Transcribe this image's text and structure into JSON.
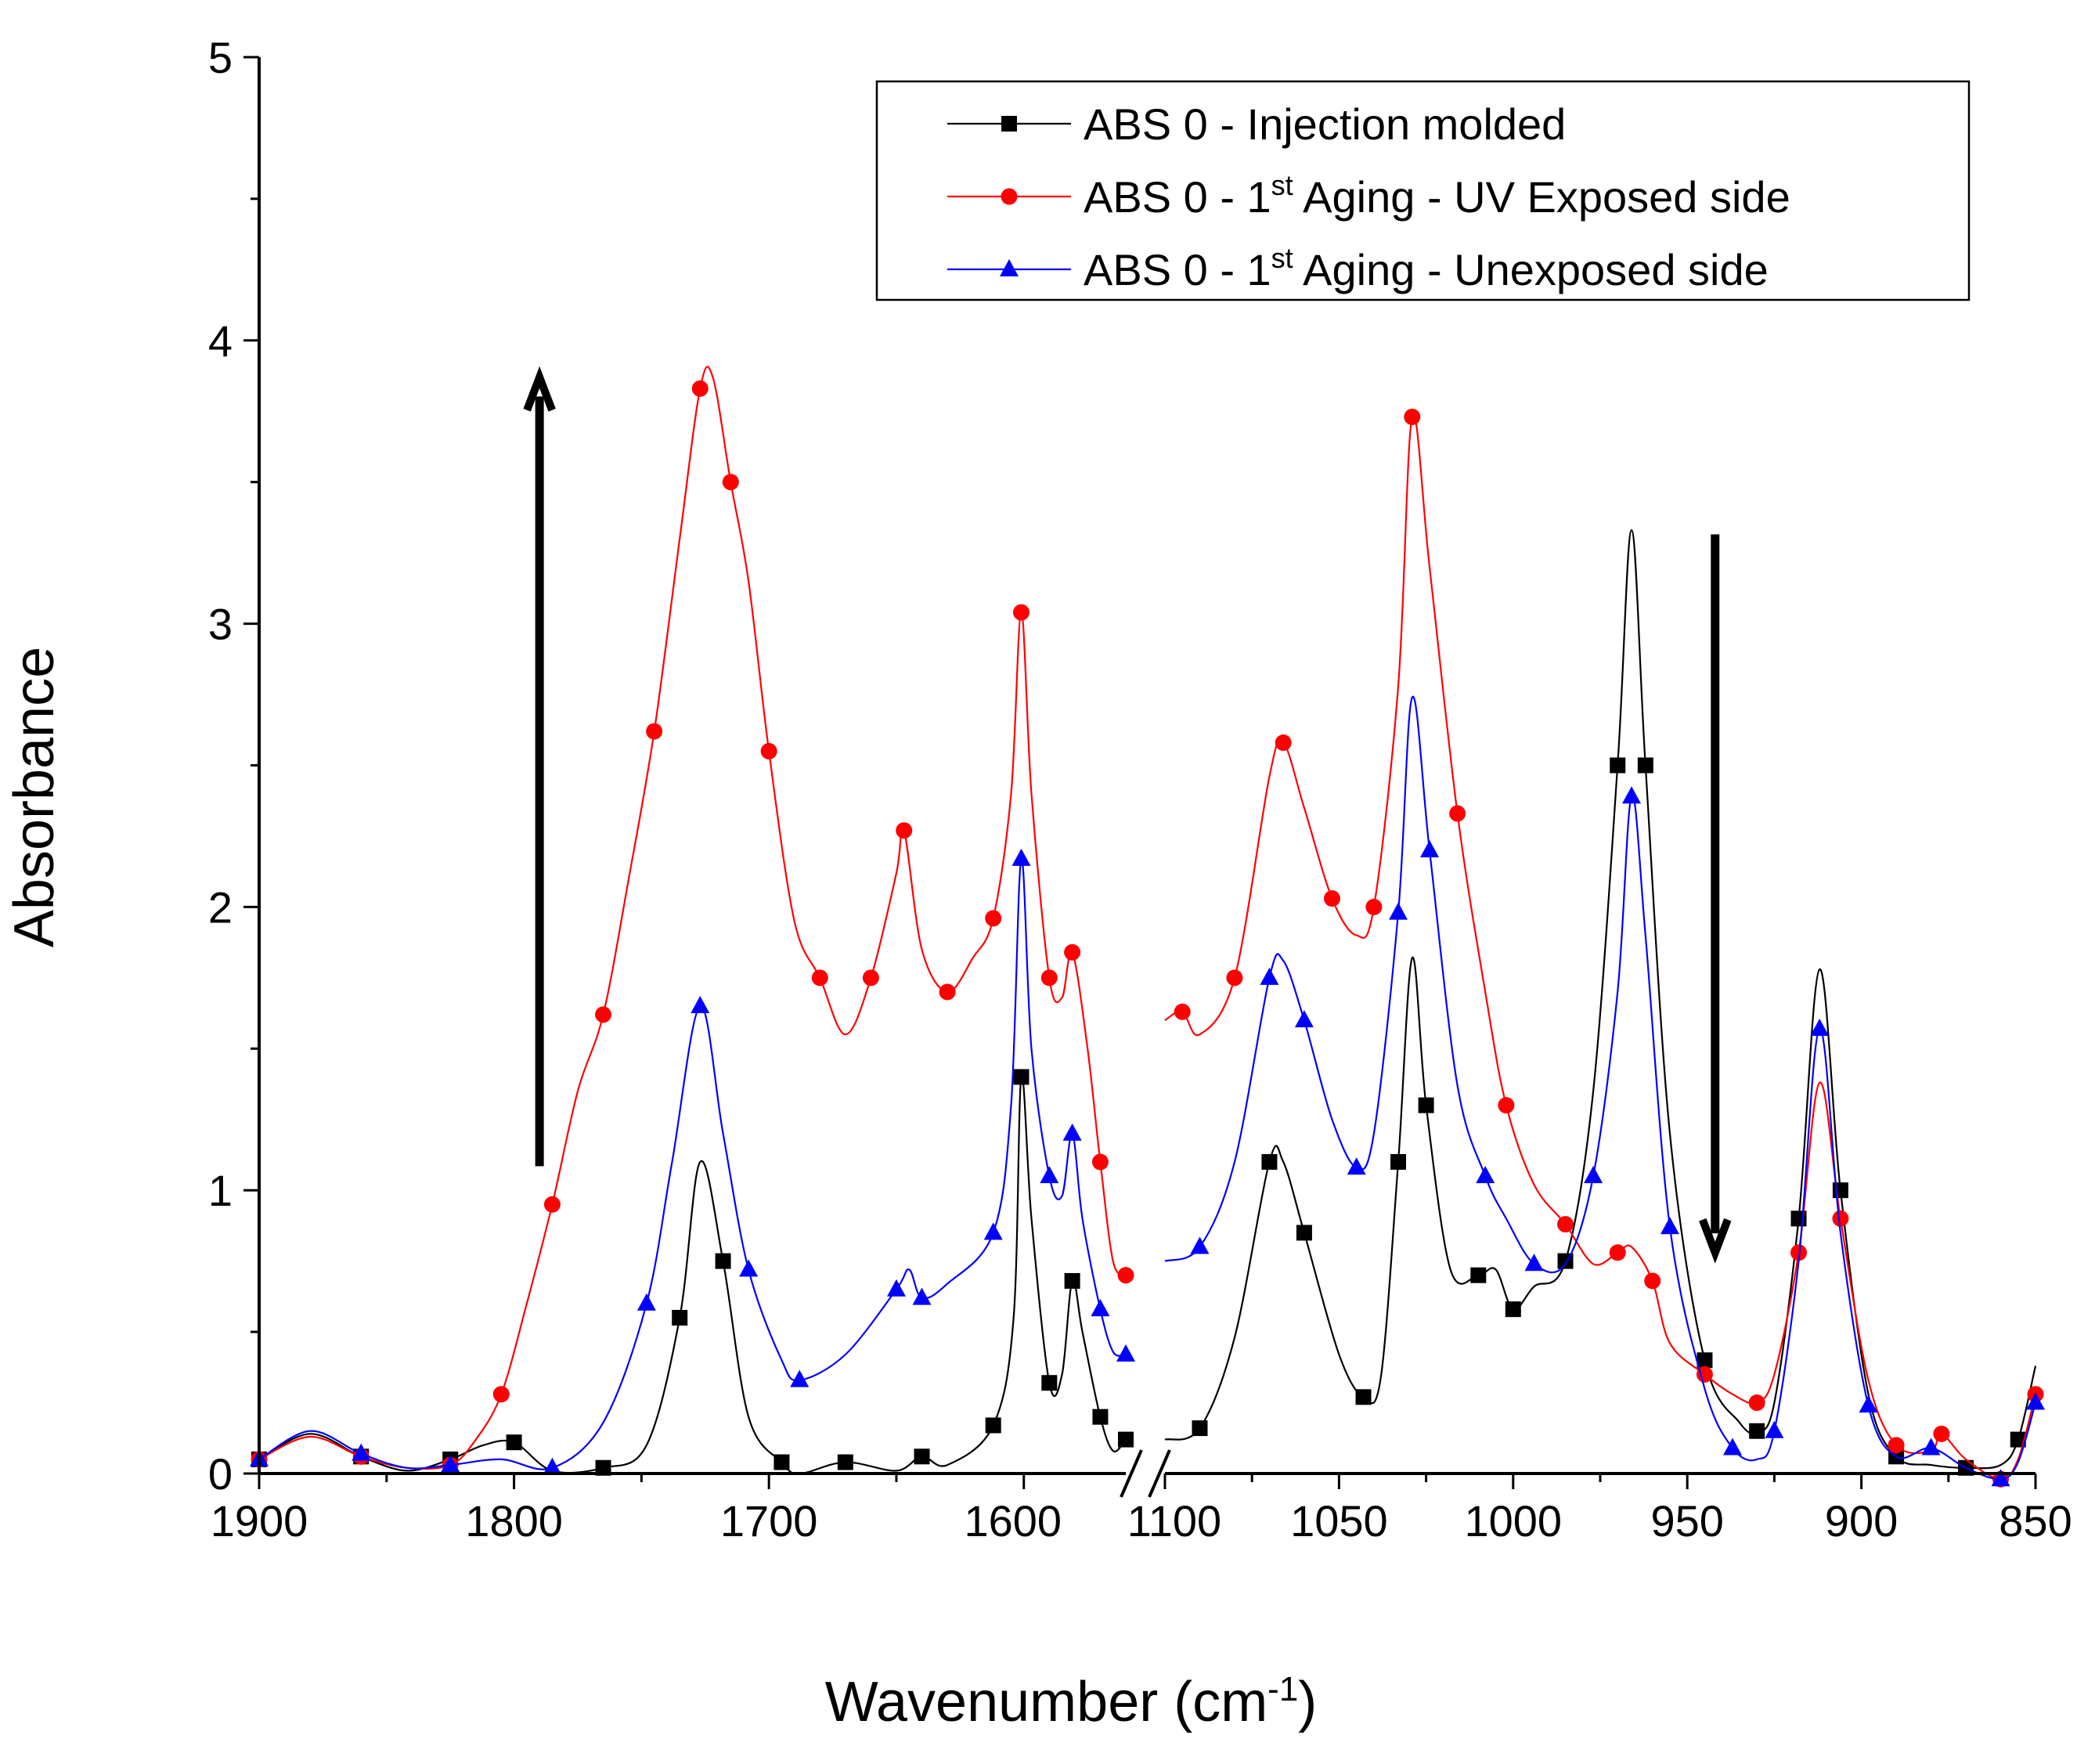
{
  "chart_data": {
    "type": "line",
    "xlabel": "Wavenumber (cm",
    "xlabel_sup": "-1",
    "xlabel_end": ")",
    "ylabel": "Absorbance",
    "ylim": [
      0,
      5
    ],
    "yticks": [
      "0",
      "1",
      "2",
      "3",
      "4",
      "5"
    ],
    "x_segments": [
      {
        "range": [
          1900,
          1560
        ],
        "ticks": [
          "1900",
          "1800",
          "1700",
          "1600"
        ]
      },
      {
        "range": [
          1100,
          850
        ],
        "ticks": [
          "1100",
          "1050",
          "1000",
          "950",
          "900",
          "850"
        ]
      }
    ],
    "axis_break": true,
    "legend_position": "top-right",
    "annotations": [
      {
        "type": "arrow",
        "direction": "up",
        "x": 1790,
        "from": 1.1,
        "to": 3.87
      },
      {
        "type": "arrow",
        "direction": "down",
        "x": 942,
        "from": 3.3,
        "to": 0.78
      }
    ],
    "series": [
      {
        "name": "ABS 0 - Injection molded",
        "name_parts": [
          "ABS 0 - Injection molded",
          "",
          ""
        ],
        "color": "#000000",
        "marker": "square",
        "points": [
          [
            1900,
            0.05
          ],
          [
            1880,
            0.14
          ],
          [
            1860,
            0.06
          ],
          [
            1842,
            0.01
          ],
          [
            1825,
            0.05
          ],
          [
            1812,
            0.1
          ],
          [
            1800,
            0.11
          ],
          [
            1785,
            0.01
          ],
          [
            1765,
            0.02
          ],
          [
            1748,
            0.1
          ],
          [
            1735,
            0.55
          ],
          [
            1727,
            1.1
          ],
          [
            1718,
            0.75
          ],
          [
            1708,
            0.2
          ],
          [
            1695,
            0.04
          ],
          [
            1688,
            0.0
          ],
          [
            1670,
            0.04
          ],
          [
            1650,
            0.01
          ],
          [
            1640,
            0.06
          ],
          [
            1630,
            0.03
          ],
          [
            1612,
            0.17
          ],
          [
            1604,
            0.55
          ],
          [
            1601,
            1.4
          ],
          [
            1597,
            0.9
          ],
          [
            1590,
            0.32
          ],
          [
            1585,
            0.35
          ],
          [
            1581,
            0.68
          ],
          [
            1577,
            0.5
          ],
          [
            1570,
            0.2
          ],
          [
            1565,
            0.08
          ],
          [
            1560,
            0.12
          ],
          [
            1100,
            0.12
          ],
          [
            1090,
            0.16
          ],
          [
            1080,
            0.48
          ],
          [
            1070,
            1.1
          ],
          [
            1066,
            1.1
          ],
          [
            1060,
            0.85
          ],
          [
            1050,
            0.42
          ],
          [
            1043,
            0.27
          ],
          [
            1038,
            0.34
          ],
          [
            1033,
            1.1
          ],
          [
            1029,
            1.82
          ],
          [
            1025,
            1.3
          ],
          [
            1018,
            0.72
          ],
          [
            1010,
            0.7
          ],
          [
            1005,
            0.72
          ],
          [
            1000,
            0.58
          ],
          [
            994,
            0.66
          ],
          [
            985,
            0.75
          ],
          [
            977,
            1.35
          ],
          [
            970,
            2.5
          ],
          [
            966,
            3.33
          ],
          [
            962,
            2.5
          ],
          [
            955,
            1.2
          ],
          [
            945,
            0.4
          ],
          [
            935,
            0.18
          ],
          [
            930,
            0.15
          ],
          [
            925,
            0.25
          ],
          [
            918,
            0.9
          ],
          [
            912,
            1.78
          ],
          [
            906,
            1.0
          ],
          [
            898,
            0.28
          ],
          [
            890,
            0.06
          ],
          [
            880,
            0.03
          ],
          [
            870,
            0.02
          ],
          [
            860,
            0.03
          ],
          [
            855,
            0.12
          ],
          [
            850,
            0.38
          ]
        ]
      },
      {
        "name": "ABS 0 - 1st Aging - UV Exposed side",
        "name_parts": [
          "ABS 0 - 1",
          "st",
          " Aging - UV Exposed side"
        ],
        "color": "#ff0000",
        "marker": "circle",
        "points": [
          [
            1900,
            0.05
          ],
          [
            1880,
            0.13
          ],
          [
            1860,
            0.06
          ],
          [
            1842,
            0.02
          ],
          [
            1825,
            0.03
          ],
          [
            1815,
            0.12
          ],
          [
            1805,
            0.28
          ],
          [
            1795,
            0.6
          ],
          [
            1785,
            0.95
          ],
          [
            1775,
            1.35
          ],
          [
            1765,
            1.62
          ],
          [
            1755,
            2.1
          ],
          [
            1745,
            2.62
          ],
          [
            1735,
            3.3
          ],
          [
            1727,
            3.83
          ],
          [
            1722,
            3.87
          ],
          [
            1715,
            3.5
          ],
          [
            1708,
            3.15
          ],
          [
            1700,
            2.55
          ],
          [
            1690,
            1.95
          ],
          [
            1680,
            1.75
          ],
          [
            1670,
            1.55
          ],
          [
            1660,
            1.75
          ],
          [
            1650,
            2.12
          ],
          [
            1647,
            2.27
          ],
          [
            1640,
            1.85
          ],
          [
            1630,
            1.7
          ],
          [
            1620,
            1.82
          ],
          [
            1612,
            1.96
          ],
          [
            1605,
            2.4
          ],
          [
            1601,
            3.04
          ],
          [
            1597,
            2.4
          ],
          [
            1590,
            1.75
          ],
          [
            1585,
            1.68
          ],
          [
            1581,
            1.84
          ],
          [
            1575,
            1.5
          ],
          [
            1570,
            1.1
          ],
          [
            1565,
            0.75
          ],
          [
            1560,
            0.7
          ],
          [
            1100,
            1.6
          ],
          [
            1095,
            1.63
          ],
          [
            1090,
            1.55
          ],
          [
            1080,
            1.75
          ],
          [
            1070,
            2.46
          ],
          [
            1066,
            2.58
          ],
          [
            1060,
            2.35
          ],
          [
            1052,
            2.03
          ],
          [
            1045,
            1.9
          ],
          [
            1040,
            2.0
          ],
          [
            1033,
            2.78
          ],
          [
            1029,
            3.73
          ],
          [
            1024,
            3.2
          ],
          [
            1016,
            2.33
          ],
          [
            1008,
            1.7
          ],
          [
            1002,
            1.3
          ],
          [
            994,
            1.02
          ],
          [
            985,
            0.88
          ],
          [
            977,
            0.74
          ],
          [
            970,
            0.78
          ],
          [
            966,
            0.8
          ],
          [
            960,
            0.68
          ],
          [
            955,
            0.46
          ],
          [
            945,
            0.35
          ],
          [
            937,
            0.28
          ],
          [
            930,
            0.25
          ],
          [
            925,
            0.35
          ],
          [
            918,
            0.78
          ],
          [
            912,
            1.38
          ],
          [
            906,
            0.9
          ],
          [
            898,
            0.33
          ],
          [
            890,
            0.1
          ],
          [
            880,
            0.08
          ],
          [
            877,
            0.14
          ],
          [
            870,
            0.05
          ],
          [
            860,
            -0.02
          ],
          [
            855,
            0.05
          ],
          [
            850,
            0.28
          ]
        ]
      },
      {
        "name": "ABS 0 - 1st Aging - Unexposed side",
        "name_parts": [
          "ABS 0 - 1",
          "st",
          " Aging - Unexposed side"
        ],
        "color": "#0000ff",
        "marker": "triangle",
        "points": [
          [
            1900,
            0.05
          ],
          [
            1880,
            0.15
          ],
          [
            1860,
            0.07
          ],
          [
            1842,
            0.02
          ],
          [
            1825,
            0.03
          ],
          [
            1805,
            0.05
          ],
          [
            1785,
            0.02
          ],
          [
            1765,
            0.18
          ],
          [
            1748,
            0.6
          ],
          [
            1738,
            1.1
          ],
          [
            1727,
            1.65
          ],
          [
            1718,
            1.2
          ],
          [
            1708,
            0.72
          ],
          [
            1695,
            0.4
          ],
          [
            1688,
            0.33
          ],
          [
            1670,
            0.42
          ],
          [
            1650,
            0.65
          ],
          [
            1645,
            0.72
          ],
          [
            1640,
            0.62
          ],
          [
            1630,
            0.67
          ],
          [
            1612,
            0.85
          ],
          [
            1605,
            1.3
          ],
          [
            1601,
            2.17
          ],
          [
            1597,
            1.5
          ],
          [
            1590,
            1.05
          ],
          [
            1585,
            0.98
          ],
          [
            1581,
            1.2
          ],
          [
            1577,
            0.9
          ],
          [
            1570,
            0.58
          ],
          [
            1565,
            0.43
          ],
          [
            1560,
            0.42
          ],
          [
            1100,
            0.75
          ],
          [
            1090,
            0.8
          ],
          [
            1080,
            1.1
          ],
          [
            1070,
            1.75
          ],
          [
            1066,
            1.81
          ],
          [
            1060,
            1.6
          ],
          [
            1052,
            1.25
          ],
          [
            1045,
            1.08
          ],
          [
            1040,
            1.2
          ],
          [
            1033,
            1.98
          ],
          [
            1029,
            2.74
          ],
          [
            1024,
            2.2
          ],
          [
            1016,
            1.37
          ],
          [
            1008,
            1.05
          ],
          [
            1002,
            0.9
          ],
          [
            994,
            0.74
          ],
          [
            985,
            0.74
          ],
          [
            977,
            1.05
          ],
          [
            970,
            1.7
          ],
          [
            966,
            2.39
          ],
          [
            962,
            1.9
          ],
          [
            955,
            0.87
          ],
          [
            945,
            0.3
          ],
          [
            937,
            0.09
          ],
          [
            930,
            0.05
          ],
          [
            925,
            0.15
          ],
          [
            918,
            0.75
          ],
          [
            912,
            1.57
          ],
          [
            906,
            0.85
          ],
          [
            898,
            0.24
          ],
          [
            890,
            0.06
          ],
          [
            880,
            0.09
          ],
          [
            870,
            0.02
          ],
          [
            860,
            -0.02
          ],
          [
            855,
            0.04
          ],
          [
            850,
            0.25
          ]
        ]
      }
    ]
  }
}
